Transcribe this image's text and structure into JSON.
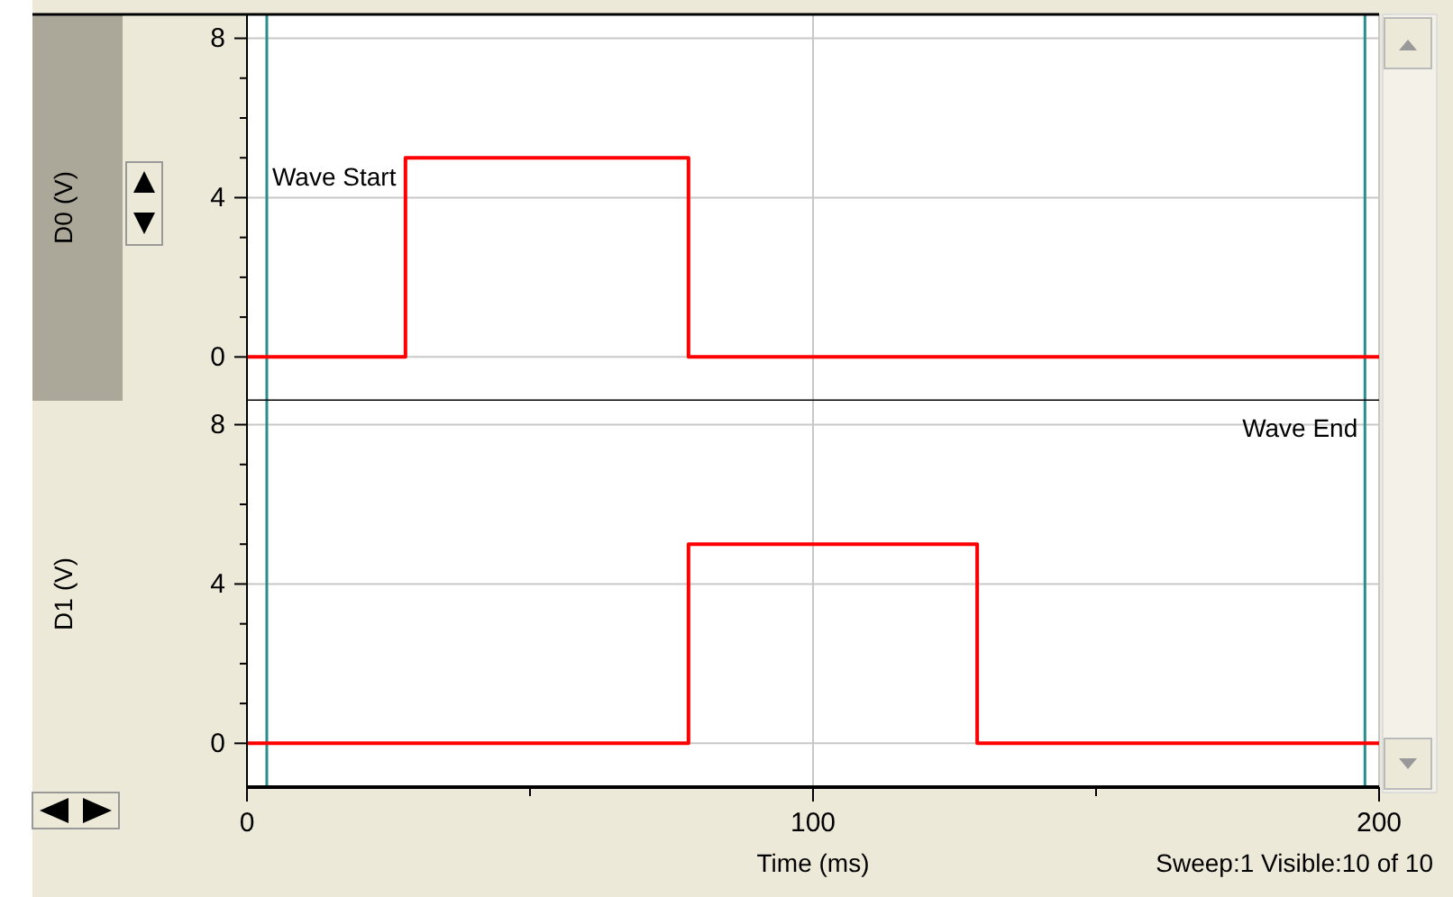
{
  "chart_data": [
    {
      "type": "line",
      "ylabel": "D0 (V)",
      "x": [
        0,
        28,
        28,
        78,
        78,
        200
      ],
      "series": [
        {
          "color": "#ff0000",
          "values": [
            0,
            0,
            5,
            5,
            0,
            0
          ]
        }
      ],
      "xlim": [
        0,
        200
      ],
      "xticks": [
        0,
        100,
        200
      ],
      "ylim": [
        -1.1,
        8.6
      ],
      "yticks": [
        0,
        {
          "value": 1,
          "label": null
        },
        {
          "value": 2,
          "label": null
        },
        {
          "value": 3,
          "label": null
        },
        4,
        {
          "value": 5,
          "label": null
        },
        {
          "value": 6,
          "label": null
        },
        {
          "value": 7,
          "label": null
        },
        8
      ],
      "tick_labels": "y",
      "grid": true,
      "line_style": "solid",
      "ref_lines": [
        {
          "axis": "x",
          "value": 3.5,
          "label": "Wave Start",
          "color": "#2a8c8c"
        },
        {
          "axis": "x",
          "value": 197.5,
          "label": null,
          "color": "#2a8c8c"
        }
      ]
    },
    {
      "type": "line",
      "ylabel": "D1 (V)",
      "xlabel": "Time (ms)",
      "x": [
        0,
        78,
        78,
        129,
        129,
        200
      ],
      "series": [
        {
          "color": "#ff0000",
          "values": [
            0,
            0,
            5,
            5,
            0,
            0
          ]
        }
      ],
      "xlim": [
        0,
        200
      ],
      "xticks": [
        0,
        {
          "value": 50,
          "label": null
        },
        100,
        {
          "value": 150,
          "label": null
        },
        200
      ],
      "ylim": [
        -1.1,
        8.6
      ],
      "yticks": [
        0,
        {
          "value": 1,
          "label": null
        },
        {
          "value": 2,
          "label": null
        },
        {
          "value": 3,
          "label": null
        },
        4,
        {
          "value": 5,
          "label": null
        },
        {
          "value": 6,
          "label": null
        },
        {
          "value": 7,
          "label": null
        },
        8
      ],
      "grid": true,
      "line_style": "solid",
      "ref_lines": [
        {
          "axis": "x",
          "value": 3.5,
          "label": null,
          "color": "#2a8c8c"
        },
        {
          "axis": "x",
          "value": 197.5,
          "label": "Wave End",
          "color": "#2a8c8c"
        }
      ],
      "annotations": [
        "Sweep:1 Visible:10 of 10"
      ]
    }
  ]
}
